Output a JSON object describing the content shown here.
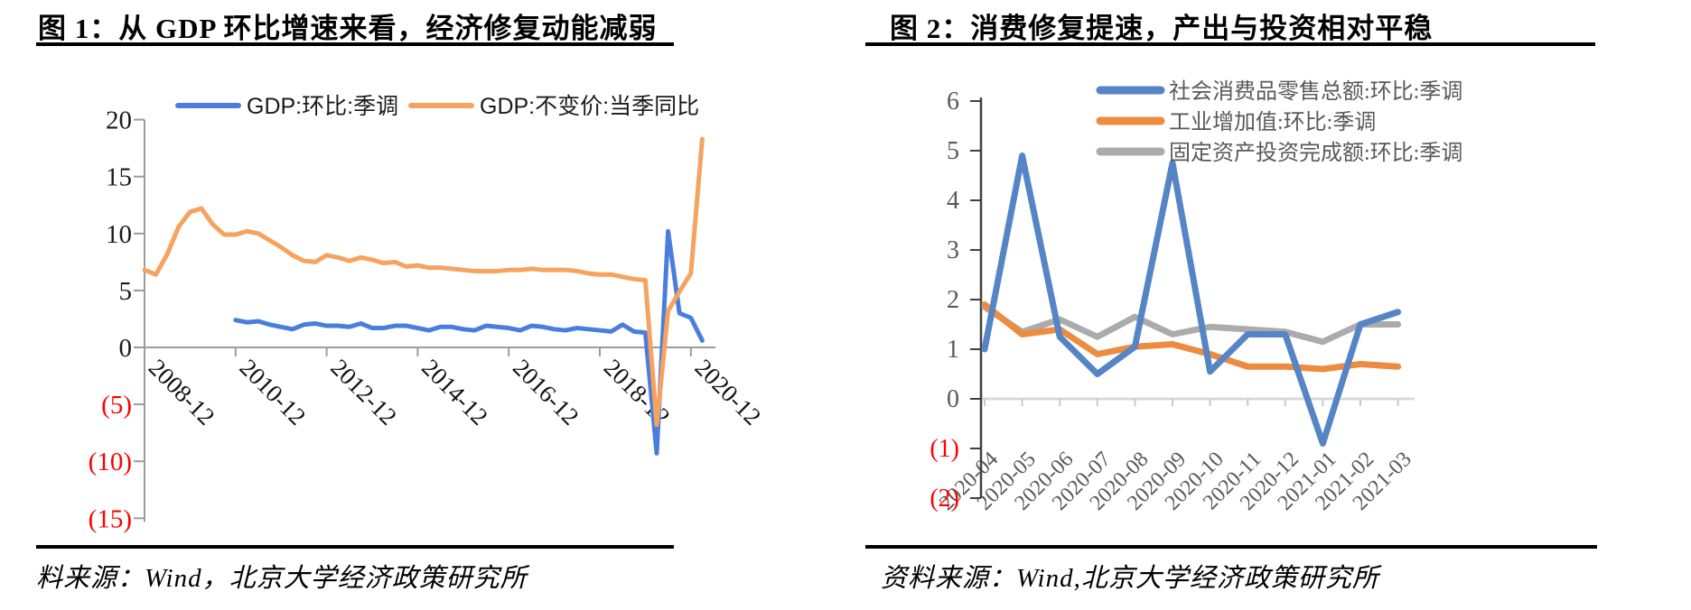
{
  "sources": {
    "left": "料来源：Wind，北京大学经济政策研究所",
    "right": "资料来源：Wind,北京大学经济政策研究所"
  },
  "chart_data": [
    {
      "id": "gdp-growth",
      "type": "line",
      "title": "图 1：从 GDP 环比增速来看，经济修复动能减弱",
      "x_tick_labels": [
        "2008-12",
        "2010-12",
        "2012-12",
        "2014-12",
        "2016-12",
        "2018-12",
        "2020-12"
      ],
      "x_tick_indices": [
        0,
        8,
        16,
        24,
        32,
        40,
        48
      ],
      "n_points": 50,
      "x_start": "2008-12",
      "x_freq": "quarterly",
      "ylim": [
        -15,
        20
      ],
      "y_ticks": [
        20,
        15,
        10,
        5,
        0,
        -5,
        -10,
        -15
      ],
      "grid": "none",
      "legend_position": "top",
      "negative_label_style": "red-parentheses",
      "series": [
        {
          "name": "GDP:环比:季调",
          "color": "#4a7ede",
          "start_index": 8,
          "values": [
            2.4,
            2.2,
            2.3,
            2.0,
            1.8,
            1.6,
            2.0,
            2.1,
            1.9,
            1.9,
            1.8,
            2.1,
            1.7,
            1.7,
            1.9,
            1.9,
            1.7,
            1.5,
            1.8,
            1.8,
            1.6,
            1.5,
            1.9,
            1.8,
            1.7,
            1.5,
            1.9,
            1.8,
            1.6,
            1.5,
            1.7,
            1.6,
            1.5,
            1.4,
            2.0,
            1.4,
            1.3,
            -9.3,
            10.2,
            3.0,
            2.6,
            0.6
          ]
        },
        {
          "name": "GDP:不变价:当季同比",
          "color": "#f5a35f",
          "start_index": 0,
          "values": [
            6.8,
            6.4,
            8.2,
            10.6,
            11.9,
            12.2,
            10.8,
            9.9,
            9.9,
            10.2,
            10.0,
            9.4,
            8.8,
            8.1,
            7.6,
            7.5,
            8.1,
            7.9,
            7.6,
            7.9,
            7.7,
            7.4,
            7.5,
            7.1,
            7.2,
            7.0,
            7.0,
            6.9,
            6.8,
            6.7,
            6.7,
            6.7,
            6.8,
            6.8,
            6.9,
            6.8,
            6.8,
            6.8,
            6.7,
            6.5,
            6.4,
            6.4,
            6.2,
            6.0,
            5.9,
            -6.8,
            3.2,
            4.9,
            6.5,
            18.3
          ]
        }
      ]
    },
    {
      "id": "monthly-activity",
      "type": "line",
      "title": "图 2：消费修复提速，产出与投资相对平稳",
      "categories": [
        "2020-04",
        "2020-05",
        "2020-06",
        "2020-07",
        "2020-08",
        "2020-09",
        "2020-10",
        "2020-11",
        "2020-12",
        "2021-01",
        "2021-02",
        "2021-03"
      ],
      "ylim": [
        -2,
        6
      ],
      "y_ticks": [
        6,
        5,
        4,
        3,
        2,
        1,
        0,
        -1,
        -2
      ],
      "grid": "zero-line-only",
      "legend_position": "top-right",
      "negative_label_style": "red-parentheses",
      "series": [
        {
          "name": "社会消费品零售总额:环比:季调",
          "color": "#5585c5",
          "values": [
            1.0,
            4.9,
            1.25,
            0.5,
            1.05,
            4.75,
            0.55,
            1.3,
            1.3,
            -0.9,
            1.5,
            1.75
          ]
        },
        {
          "name": "工业增加值:环比:季调",
          "color": "#ed8b3f",
          "values": [
            1.9,
            1.3,
            1.4,
            0.9,
            1.05,
            1.1,
            0.9,
            0.65,
            0.65,
            0.6,
            0.7,
            0.65
          ]
        },
        {
          "name": "固定资产投资完成额:环比:季调",
          "color": "#ababab",
          "values": [
            1.85,
            1.35,
            1.6,
            1.25,
            1.65,
            1.3,
            1.45,
            1.4,
            1.35,
            1.15,
            1.5,
            1.5
          ]
        }
      ]
    }
  ]
}
